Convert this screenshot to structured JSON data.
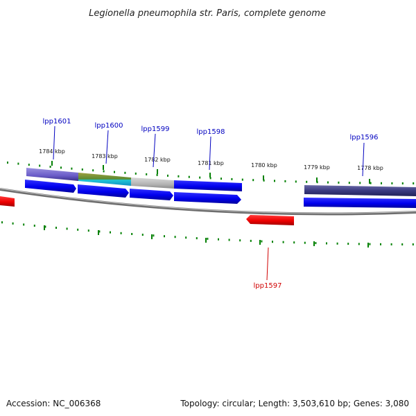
{
  "title": "Legionella pneumophila str. Paris, complete genome",
  "footer": {
    "accession": "Accession: NC_006368",
    "summary": "Topology: circular; Length: 3,503,610 bp; Genes: 3,080"
  },
  "ruler": {
    "labels": [
      "1784 kbp",
      "1783 kbp",
      "1782 kbp",
      "1781 kbp",
      "1780 kbp",
      "1779 kbp",
      "1778 kbp"
    ]
  },
  "genes": [
    {
      "name": "lpp1601",
      "strand": "+",
      "color": "#0000c0"
    },
    {
      "name": "lpp1600",
      "strand": "+",
      "color": "#0000c0"
    },
    {
      "name": "lpp1599",
      "strand": "+",
      "color": "#0000c0"
    },
    {
      "name": "lpp1598",
      "strand": "+",
      "color": "#0000c0"
    },
    {
      "name": "lpp1597",
      "strand": "-",
      "color": "#d00000"
    },
    {
      "name": "lpp1596",
      "strand": "+",
      "color": "#0000c0"
    }
  ],
  "colors": {
    "forward_gene": "#0000ff",
    "reverse_gene": "#ff0000",
    "tick": "#008000",
    "backbone": "#888888"
  }
}
